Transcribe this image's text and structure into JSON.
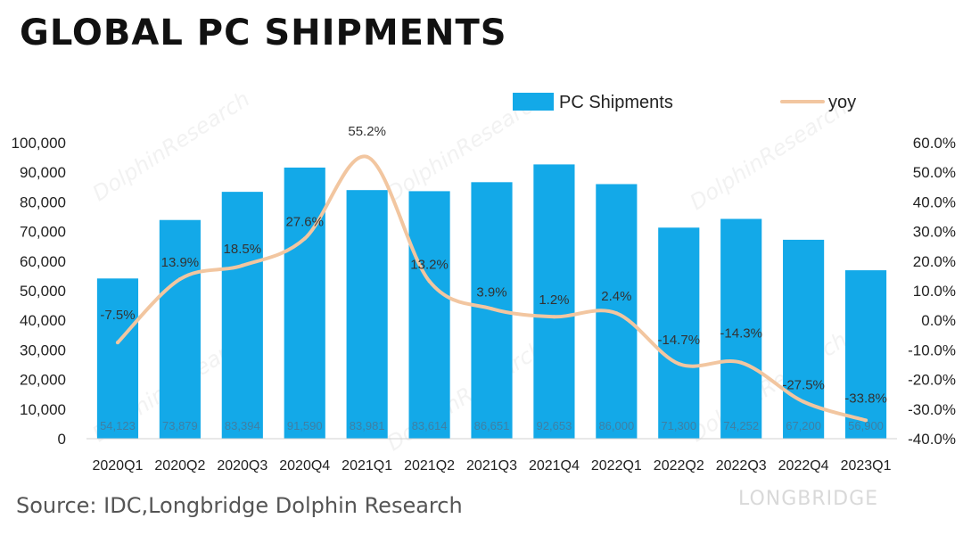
{
  "title": "GLOBAL PC SHIPMENTS",
  "source": "Source: IDC,Longbridge Dolphin Research",
  "watermark": {
    "text": "DolphinResearch",
    "brand": "LONGBRIDGE"
  },
  "colors": {
    "bar": "#13a9e8",
    "line": "#f2c6a0",
    "axis": "#d0d0d0",
    "text": "#222222",
    "bar_label": "#3f7fa3"
  },
  "chart_data": {
    "type": "bar",
    "title": "GLOBAL PC SHIPMENTS",
    "categories": [
      "2020Q1",
      "2020Q2",
      "2020Q3",
      "2020Q4",
      "2021Q1",
      "2021Q2",
      "2021Q3",
      "2021Q4",
      "2022Q1",
      "2022Q2",
      "2022Q3",
      "2022Q4",
      "2023Q1"
    ],
    "series": [
      {
        "name": "PC Shipments",
        "type": "bar",
        "axis": "left",
        "values": [
          54123,
          73879,
          83394,
          91590,
          83981,
          83614,
          86651,
          92653,
          86000,
          71300,
          74252,
          67200,
          56900
        ],
        "labels": [
          "54,123",
          "73,879",
          "83,394",
          "91,590",
          "83,981",
          "83,614",
          "86,651",
          "92,653",
          "86,000",
          "71,300",
          "74,252",
          "67,200",
          "56,900"
        ]
      },
      {
        "name": "yoy",
        "type": "line",
        "axis": "right",
        "values": [
          -7.5,
          13.9,
          18.5,
          27.6,
          55.2,
          13.2,
          3.9,
          1.2,
          2.4,
          -14.7,
          -14.3,
          -27.5,
          -33.8
        ],
        "labels": [
          "-7.5%",
          "13.9%",
          "18.5%",
          "27.6%",
          "55.2%",
          "13.2%",
          "3.9%",
          "1.2%",
          "2.4%",
          "-14.7%",
          "-14.3%",
          "-27.5%",
          "-33.8%"
        ]
      }
    ],
    "y_left": {
      "min": 0,
      "max": 100000,
      "step": 10000,
      "ticks": [
        "0",
        "10,000",
        "20,000",
        "30,000",
        "40,000",
        "50,000",
        "60,000",
        "70,000",
        "80,000",
        "90,000",
        "100,000"
      ]
    },
    "y_right": {
      "min": -40,
      "max": 60,
      "step": 10,
      "ticks": [
        "-40.0%",
        "-30.0%",
        "-20.0%",
        "-10.0%",
        "0.0%",
        "10.0%",
        "20.0%",
        "30.0%",
        "40.0%",
        "50.0%",
        "60.0%"
      ]
    },
    "legend": {
      "placement": "top-right",
      "items": [
        "PC Shipments",
        "yoy"
      ]
    },
    "grid": false
  }
}
